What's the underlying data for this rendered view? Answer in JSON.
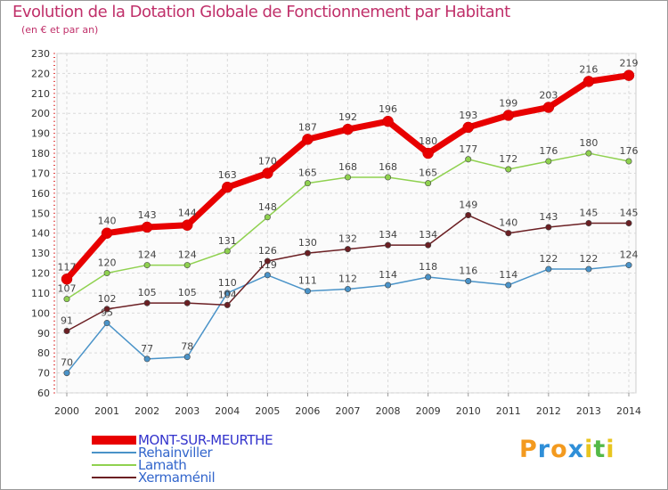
{
  "title": "Evolution de la Dotation Globale de Fonctionnement par Habitant",
  "subtitle": "(en € et par an)",
  "logo": {
    "letters": [
      "P",
      "r",
      "o",
      "x",
      "i",
      "t",
      "i"
    ],
    "colors": [
      "#f39a1f",
      "#2f8fd8",
      "#f39a1f",
      "#2f8fd8",
      "#e8c51f",
      "#54b948",
      "#e8c51f"
    ]
  },
  "chart_data": {
    "type": "line",
    "x": [
      "2000",
      "2001",
      "2002",
      "2003",
      "2004",
      "2005",
      "2006",
      "2007",
      "2008",
      "2009",
      "2010",
      "2011",
      "2012",
      "2013",
      "2014"
    ],
    "ylim": [
      60,
      230
    ],
    "yticks": [
      60,
      70,
      80,
      90,
      100,
      110,
      120,
      130,
      140,
      150,
      160,
      170,
      180,
      190,
      200,
      210,
      220,
      230
    ],
    "grid": true,
    "legend_position": "bottom-left",
    "series": [
      {
        "name": "MONT-SUR-MEURTHE",
        "color": "#e80000",
        "values": [
          117,
          140,
          143,
          144,
          163,
          170,
          187,
          192,
          196,
          180,
          193,
          199,
          203,
          216,
          219
        ]
      },
      {
        "name": "Rehainviller",
        "color": "#4a93c8",
        "values": [
          70,
          95,
          77,
          78,
          110,
          119,
          111,
          112,
          114,
          118,
          116,
          114,
          122,
          122,
          124
        ]
      },
      {
        "name": "Lamath",
        "color": "#8fd14f",
        "values": [
          107,
          120,
          124,
          124,
          131,
          148,
          165,
          168,
          168,
          165,
          177,
          172,
          176,
          180,
          176
        ]
      },
      {
        "name": "Xermaménil",
        "color": "#6b1f23",
        "values": [
          91,
          102,
          105,
          105,
          104,
          126,
          130,
          132,
          134,
          134,
          149,
          140,
          143,
          145,
          145
        ]
      }
    ]
  }
}
